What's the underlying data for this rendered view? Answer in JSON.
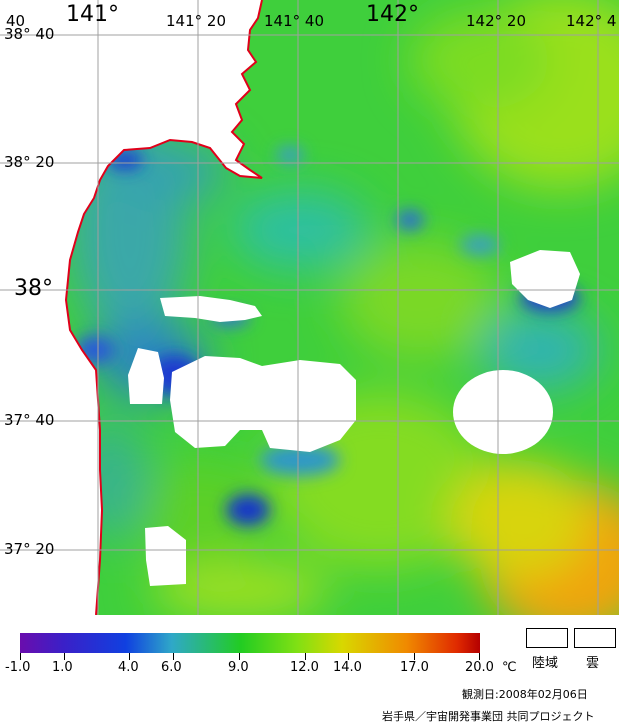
{
  "map": {
    "lat_labels": [
      {
        "text": "38° 40",
        "size": "sm"
      },
      {
        "text": "38° 20",
        "size": "sm"
      },
      {
        "text": "38°",
        "size": "lg"
      },
      {
        "text": "37° 40",
        "size": "sm"
      },
      {
        "text": "37° 20",
        "size": "sm"
      }
    ],
    "lon_labels": [
      {
        "text": "40",
        "size": "sm"
      },
      {
        "text": "141°",
        "size": "lg"
      },
      {
        "text": "141° 20",
        "size": "sm"
      },
      {
        "text": "141° 40",
        "size": "sm"
      },
      {
        "text": "142°",
        "size": "lg"
      },
      {
        "text": "142° 20",
        "size": "sm"
      },
      {
        "text": "142° 4",
        "size": "sm"
      }
    ],
    "colors": {
      "land": "#ffffff",
      "cloud": "#ffffff",
      "coastline": "#e0001a",
      "grid": "#a0a0a0"
    }
  },
  "colorbar": {
    "unit": "℃",
    "ticks": [
      "-1.0",
      "1.0",
      "4.0",
      "6.0",
      "9.0",
      "12.0",
      "14.0",
      "17.0",
      "20.0"
    ],
    "min": -1.0,
    "max": 20.0
  },
  "legend": {
    "land_label": "陸域",
    "cloud_label": "雲"
  },
  "observation_date": "観測日:2008年02月06日",
  "credit": "岩手県／宇宙開発事業団 共同プロジェクト"
}
